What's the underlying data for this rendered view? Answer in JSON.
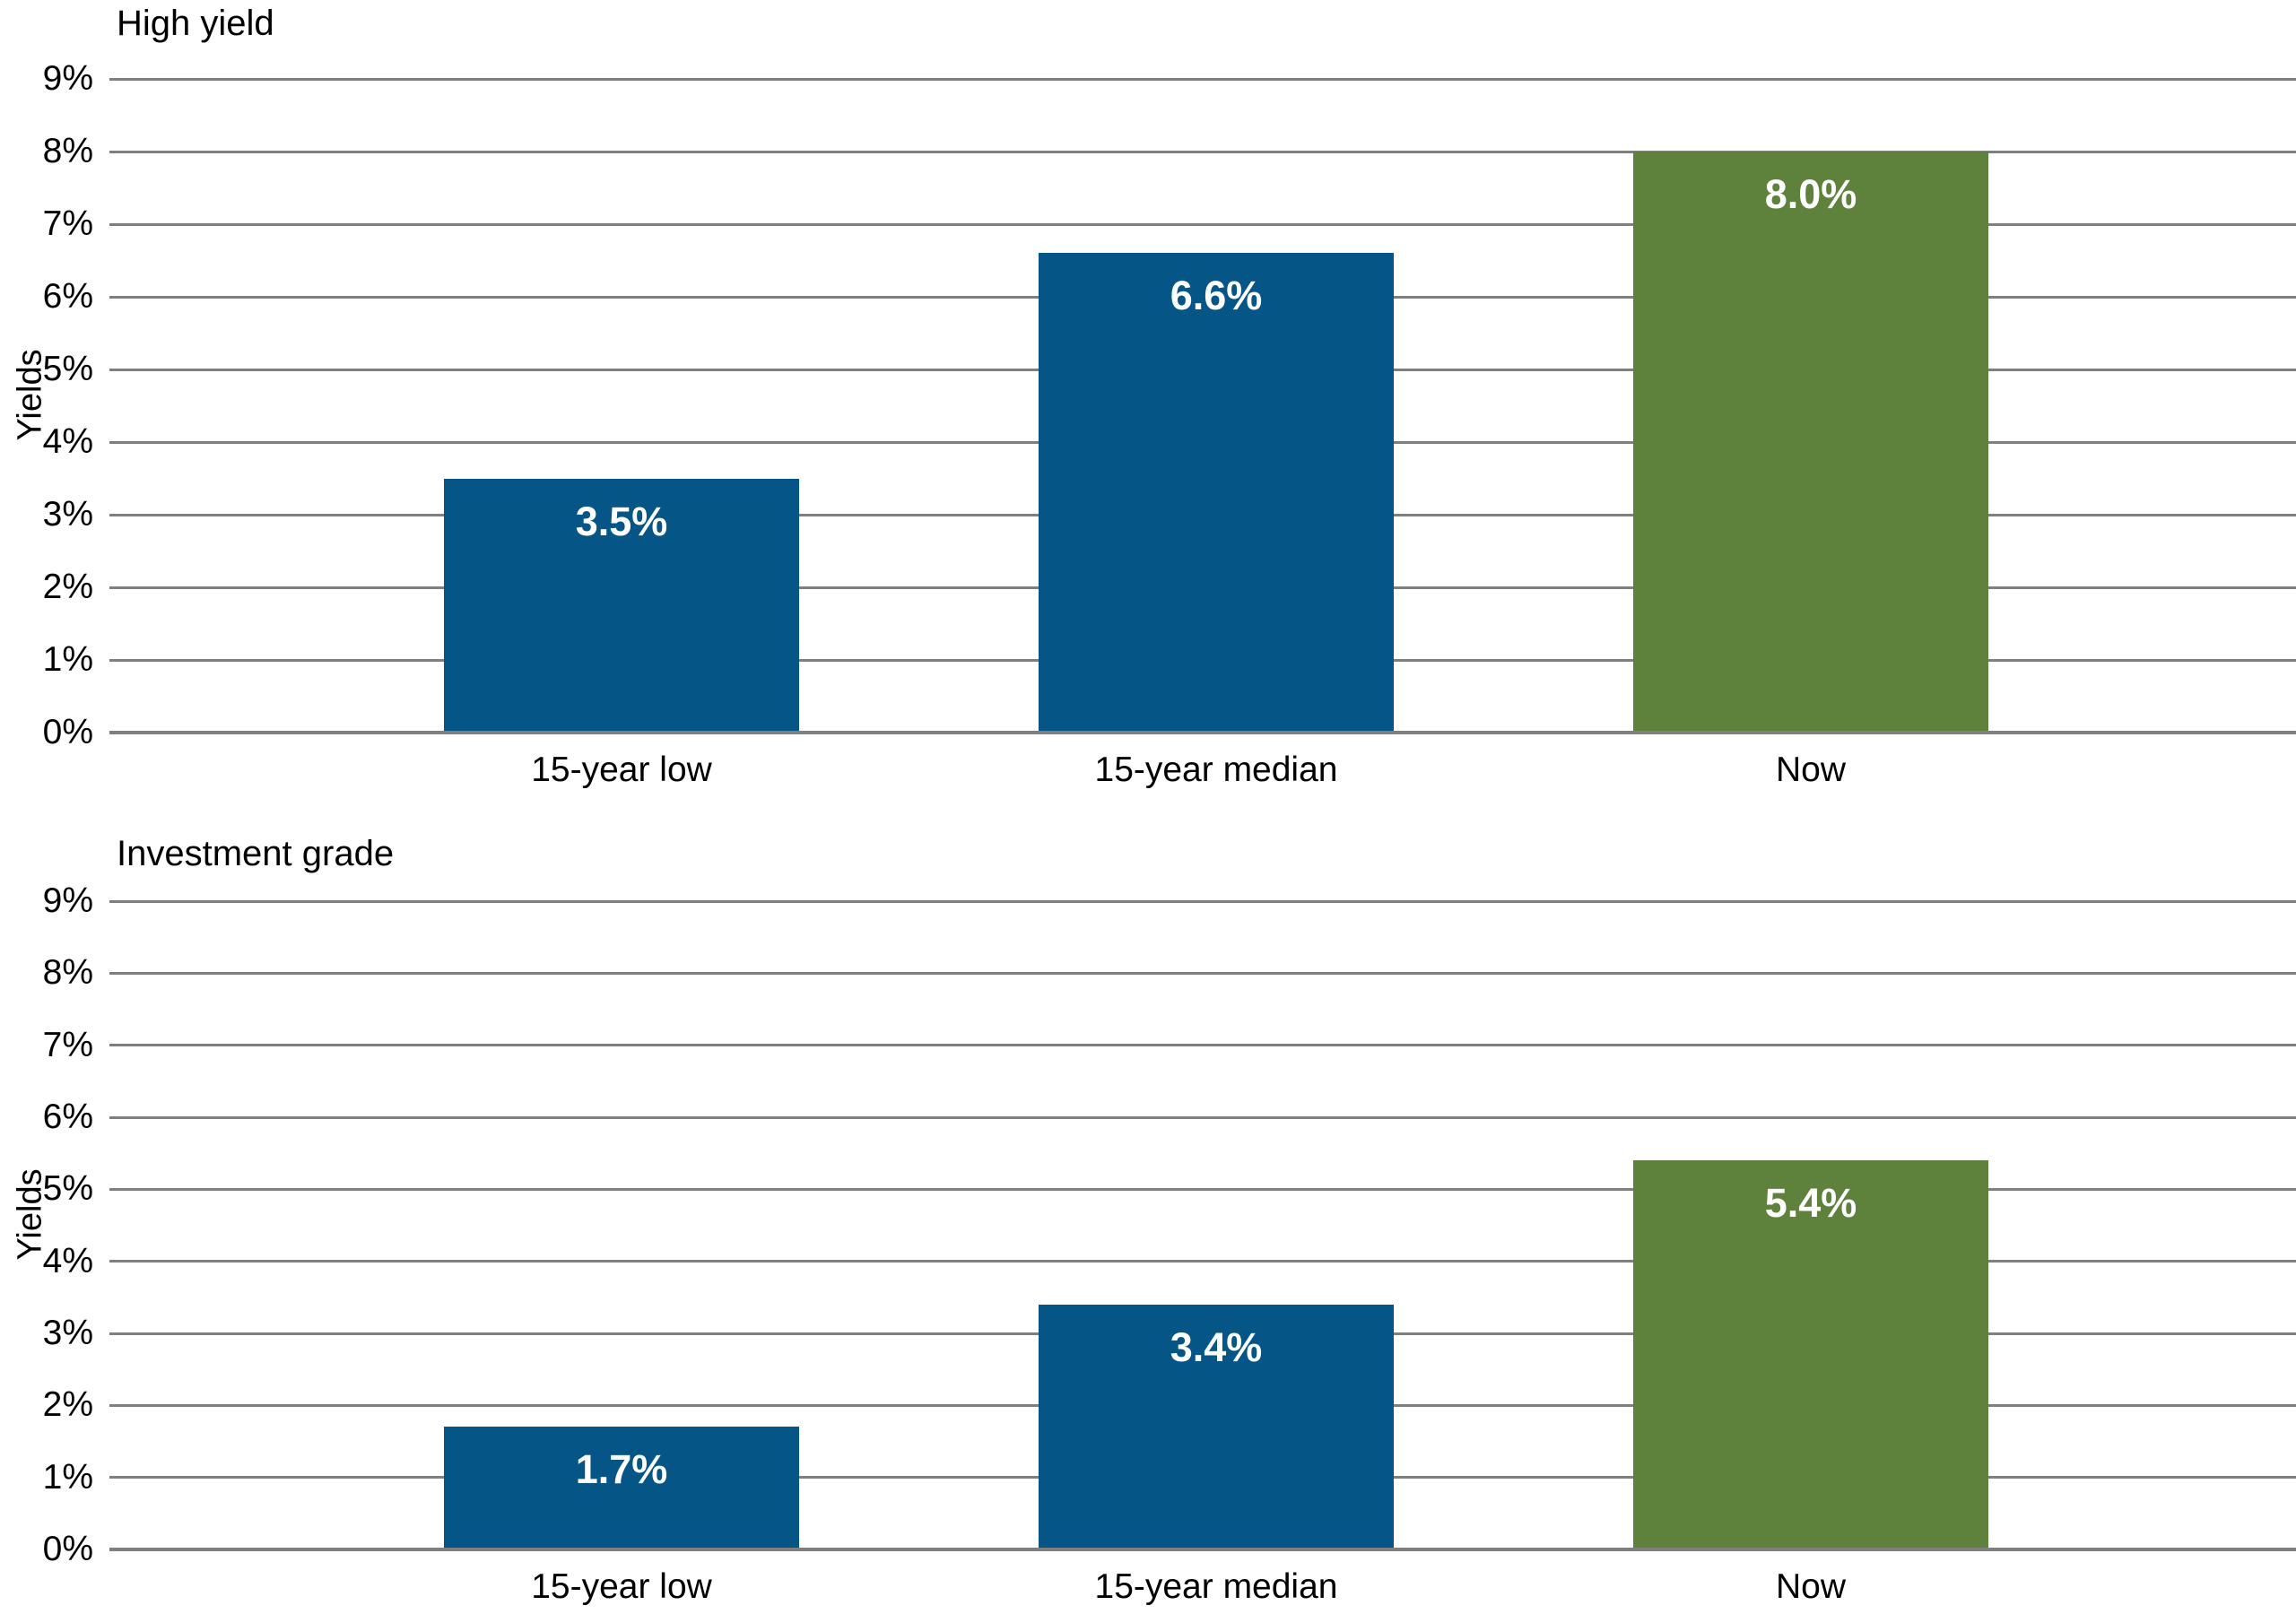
{
  "colors": {
    "bar_blue": "#055587",
    "bar_green": "#5E813C",
    "gridline": "#7F7F7F",
    "text": "#000000",
    "bar_label_text": "#FFFFFF",
    "background": "#FFFFFF"
  },
  "chart_data": [
    {
      "type": "bar",
      "title": "High yield",
      "ylabel": "Yields",
      "xlabel": "",
      "categories": [
        "15-year low",
        "15-year median",
        "Now"
      ],
      "values": [
        3.5,
        6.6,
        8.0
      ],
      "value_labels": [
        "3.5%",
        "6.6%",
        "8.0%"
      ],
      "bar_colors": [
        "#055587",
        "#055587",
        "#5E813C"
      ],
      "ylim": [
        0,
        9
      ],
      "ytick_step": 1,
      "ytick_suffix": "%",
      "grid": "horizontal",
      "legend": "none",
      "value_label_position": "inside-top"
    },
    {
      "type": "bar",
      "title": "Investment grade",
      "ylabel": "Yields",
      "xlabel": "",
      "categories": [
        "15-year low",
        "15-year median",
        "Now"
      ],
      "values": [
        1.7,
        3.4,
        5.4
      ],
      "value_labels": [
        "1.7%",
        "3.4%",
        "5.4%"
      ],
      "bar_colors": [
        "#055587",
        "#055587",
        "#5E813C"
      ],
      "ylim": [
        0,
        9
      ],
      "ytick_step": 1,
      "ytick_suffix": "%",
      "grid": "horizontal",
      "legend": "none",
      "value_label_position": "inside-top"
    }
  ]
}
